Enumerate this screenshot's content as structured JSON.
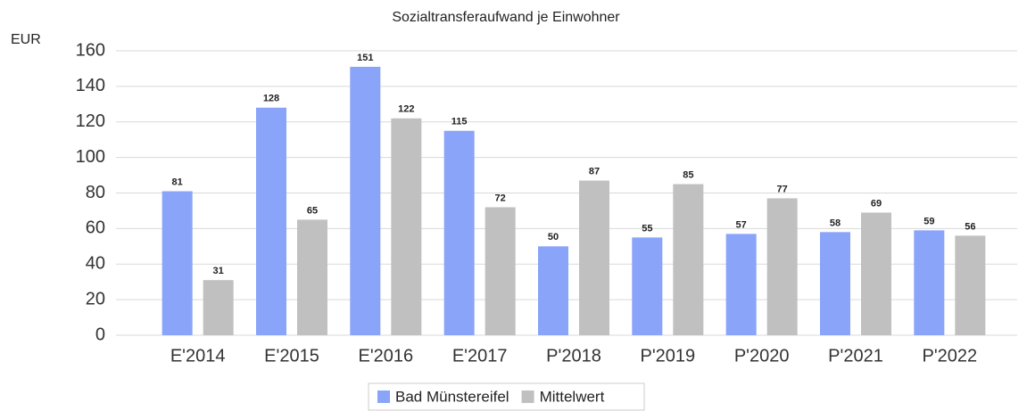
{
  "chart_data": {
    "type": "bar",
    "title": "Sozialtransferaufwand je Einwohner",
    "y_label": "EUR",
    "categories": [
      "E'2014",
      "E'2015",
      "E'2016",
      "E'2017",
      "P'2018",
      "P'2019",
      "P'2020",
      "P'2021",
      "P'2022"
    ],
    "series": [
      {
        "name": "Bad Münstereifel",
        "color": "#89a4f9",
        "values": [
          81,
          128,
          151,
          115,
          50,
          55,
          57,
          58,
          59
        ]
      },
      {
        "name": "Mittelwert",
        "color": "#c0c0c0",
        "values": [
          31,
          65,
          122,
          72,
          87,
          85,
          77,
          69,
          56
        ]
      }
    ],
    "ylim": [
      0,
      160
    ],
    "yticks": [
      0,
      20,
      40,
      60,
      80,
      100,
      120,
      140,
      160
    ],
    "grid": true,
    "legend": "bottom"
  }
}
